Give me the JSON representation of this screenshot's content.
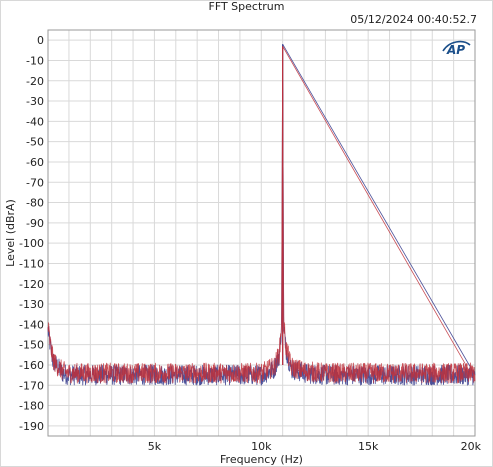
{
  "header": {
    "title": "FFT Spectrum",
    "timestamp": "05/12/2024 00:40:52.7",
    "logo_text": "AP"
  },
  "colors": {
    "series_blue": "#3a3f8f",
    "series_red": "#c0303a",
    "grid": "#d9d9d9",
    "plot_border": "#9a9a9a",
    "logo": "#1b4f8a"
  },
  "chart_data": {
    "type": "line",
    "title": "FFT Spectrum",
    "xlabel": "Frequency (Hz)",
    "ylabel": "Level (dBrA)",
    "xlim": [
      20,
      20000
    ],
    "ylim": [
      -195,
      5
    ],
    "grid": true,
    "x_tick_labels": [
      {
        "value": 5000,
        "label": "5k"
      },
      {
        "value": 10000,
        "label": "10k"
      },
      {
        "value": 15000,
        "label": "15k"
      },
      {
        "value": 20000,
        "label": "20k"
      }
    ],
    "y_ticks": [
      0,
      -10,
      -20,
      -30,
      -40,
      -50,
      -60,
      -70,
      -80,
      -90,
      -100,
      -110,
      -120,
      -130,
      -140,
      -150,
      -160,
      -170,
      -180,
      -190
    ],
    "series": [
      {
        "color": "#3a3f8f",
        "x": [
          20,
          120,
          250,
          400,
          700,
          1000,
          2000,
          3000,
          4000,
          5000,
          6000,
          7000,
          8000,
          9000,
          10000,
          10600,
          10850,
          10950,
          11000,
          11050,
          11150,
          11400,
          12000,
          13000,
          14000,
          15000,
          16000,
          17000,
          18000,
          19000,
          20000
        ],
        "y": [
          -143,
          -150,
          -158,
          -160,
          -164,
          -165,
          -165,
          -165,
          -165,
          -165,
          -165,
          -165,
          -165,
          -165,
          -165,
          -162,
          -155,
          -140,
          -2,
          -140,
          -152,
          -162,
          -164,
          -165,
          -165,
          -165,
          -165,
          -165,
          -165,
          -165,
          -165
        ]
      },
      {
        "color": "#c0303a",
        "x": [
          20,
          120,
          250,
          400,
          700,
          1000,
          2000,
          3000,
          4000,
          5000,
          6000,
          7000,
          8000,
          9000,
          10000,
          10600,
          10850,
          10950,
          11000,
          11050,
          11150,
          11400,
          12000,
          13000,
          14000,
          15000,
          16000,
          17000,
          18000,
          19000,
          20000
        ],
        "y": [
          -141,
          -149,
          -157,
          -160,
          -163,
          -164,
          -164,
          -164,
          -164,
          -164,
          -164,
          -164,
          -164,
          -164,
          -164,
          -161,
          -154,
          -139,
          -3,
          -139,
          -151,
          -161,
          -163,
          -164,
          -164,
          -164,
          -164,
          -164,
          -164,
          -164,
          -164
        ]
      }
    ]
  }
}
